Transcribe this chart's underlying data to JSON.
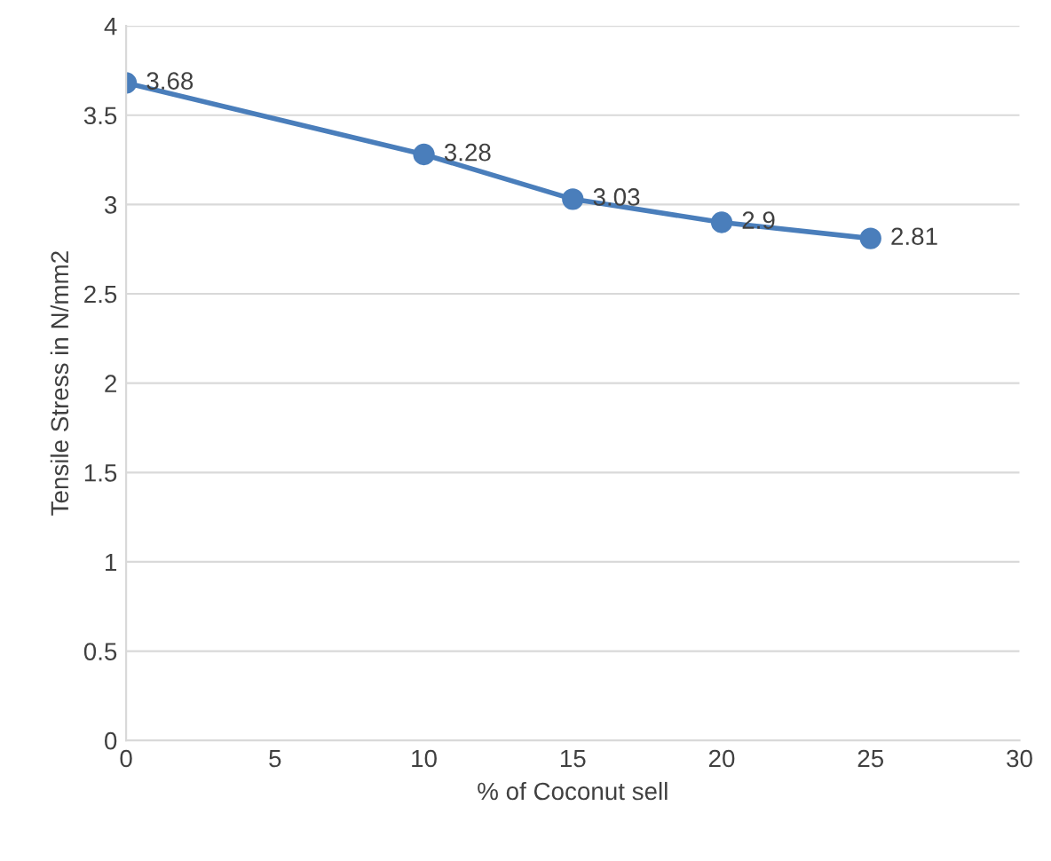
{
  "chart_data": {
    "type": "line",
    "xlabel": "% of Coconut sell",
    "ylabel": "Tensile Stress in N/mm2",
    "x": [
      0,
      10,
      15,
      20,
      25
    ],
    "series": [
      {
        "color": "#4a7ebb",
        "values": [
          3.68,
          3.28,
          3.03,
          2.9,
          2.81
        ]
      }
    ],
    "xlim": [
      0,
      30
    ],
    "xticks": [
      0,
      5,
      10,
      15,
      20,
      25,
      30
    ],
    "ylim": [
      0,
      4
    ],
    "yticks": [
      0,
      0.5,
      1,
      1.5,
      2,
      2.5,
      3,
      3.5,
      4
    ],
    "grid": "y",
    "marker": "circle",
    "line_style": "solid",
    "data_labels": true,
    "legend": false
  }
}
